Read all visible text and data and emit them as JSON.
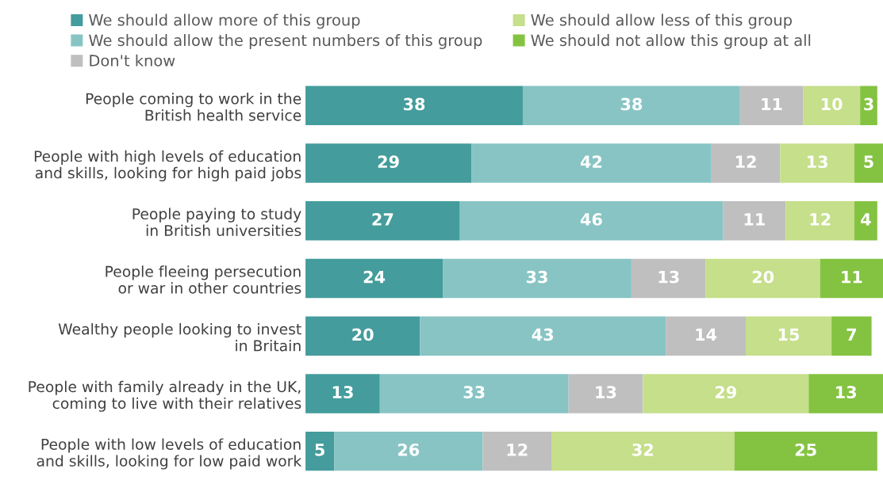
{
  "chart_data": {
    "type": "bar",
    "orientation": "horizontal",
    "stacked": true,
    "data_labels": true,
    "legend": "top",
    "grid": false,
    "categories": [
      "People coming to work in the\nBritish health service",
      "People with high levels of education\nand skills, looking for high paid jobs",
      "People paying to study\nin British universities",
      "People fleeing persecution\nor war in other countries",
      "Wealthy people looking to invest\nin Britain",
      "People with family already in the UK,\ncoming to live with their relatives",
      "People with low levels of education\nand skills, looking for low paid work"
    ],
    "series": [
      {
        "name": "We should allow more of this group",
        "color": "#449c9c",
        "values": [
          38,
          29,
          27,
          24,
          20,
          13,
          5
        ]
      },
      {
        "name": "We should allow the present numbers of this group",
        "color": "#88c4c4",
        "values": [
          38,
          42,
          46,
          33,
          43,
          33,
          26
        ]
      },
      {
        "name": "Don't know",
        "color": "#bfbfbf",
        "values": [
          11,
          12,
          11,
          13,
          14,
          13,
          12
        ]
      },
      {
        "name": "We should allow less of this group",
        "color": "#c5df8a",
        "values": [
          10,
          13,
          12,
          20,
          15,
          29,
          32
        ]
      },
      {
        "name": "We should not allow this group at all",
        "color": "#84c341",
        "values": [
          3,
          5,
          4,
          11,
          7,
          13,
          25
        ]
      }
    ]
  }
}
